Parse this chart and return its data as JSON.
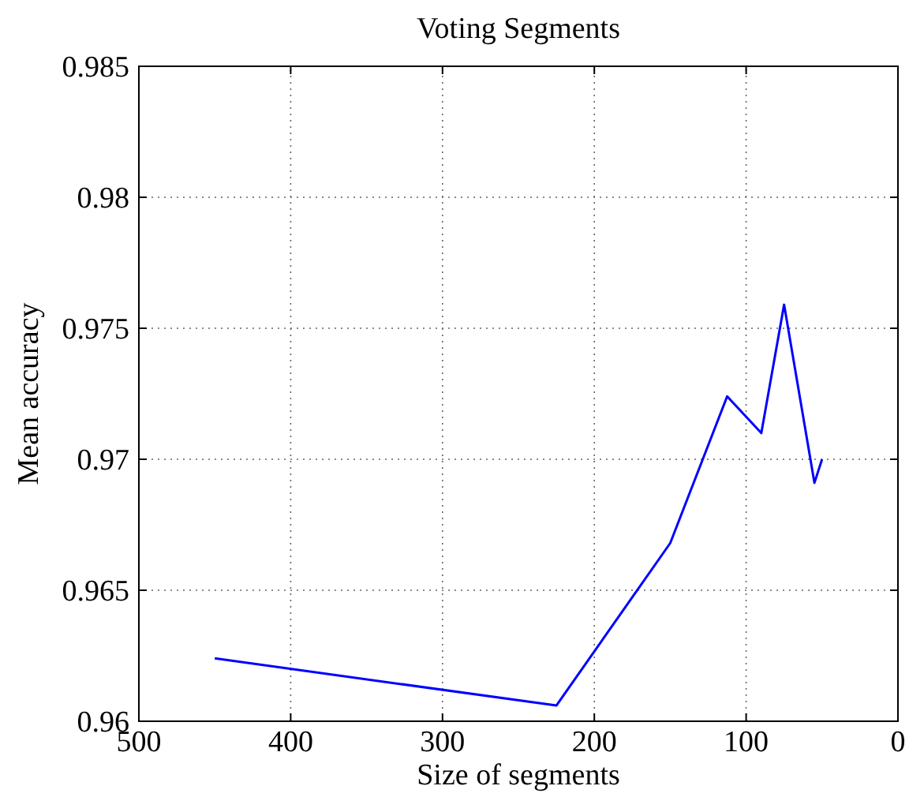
{
  "chart_data": {
    "type": "line",
    "title": "Voting Segments",
    "xlabel": "Size of segments",
    "ylabel": "Mean accuracy",
    "x": [
      450,
      225,
      150,
      112.5,
      90,
      75,
      55,
      50
    ],
    "series": [
      {
        "color": "#0000ff",
        "values": [
          0.9624,
          0.9606,
          0.9668,
          0.9724,
          0.971,
          0.9759,
          0.9691,
          0.97
        ]
      }
    ],
    "xlim": [
      500,
      0
    ],
    "xticks": [
      500,
      400,
      300,
      200,
      100,
      0
    ],
    "ylim": [
      0.96,
      0.985
    ],
    "yticks": [
      0.96,
      0.965,
      0.97,
      0.975,
      0.98,
      0.985
    ],
    "grid": true,
    "line_style": "solid"
  }
}
